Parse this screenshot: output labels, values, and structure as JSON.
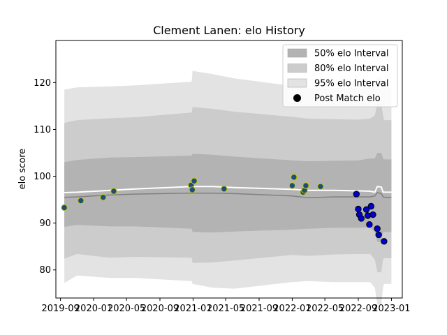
{
  "chart_data": {
    "type": "scatter",
    "title": "Clement Lanen: elo History",
    "xlabel": "",
    "ylabel": "elo score",
    "xlim": [
      "2019-08-15",
      "2023-02-10"
    ],
    "ylim": [
      74,
      129
    ],
    "grid": false,
    "legend_position": "top-right",
    "x_tick_labels": [
      "2019-09",
      "2020-01",
      "2020-05",
      "2020-09",
      "2021-01",
      "2021-05",
      "2021-09",
      "2022-01",
      "2022-05",
      "2022-09",
      "2023-01"
    ],
    "x_tick_values": [
      "2019-09-01",
      "2020-01-01",
      "2020-05-01",
      "2020-09-01",
      "2021-01-01",
      "2021-05-01",
      "2021-09-01",
      "2022-01-01",
      "2022-05-01",
      "2022-09-01",
      "2023-01-01"
    ],
    "y_ticks": [
      80,
      90,
      100,
      110,
      120
    ],
    "legend": [
      {
        "label": "50% elo Interval",
        "kind": "band",
        "color": "#b3b3b3"
      },
      {
        "label": "80% elo Interval",
        "kind": "band",
        "color": "#cccccc"
      },
      {
        "label": "95% elo Interval",
        "kind": "band",
        "color": "#e3e3e3"
      },
      {
        "label": "Post Match elo",
        "kind": "marker",
        "color": "#000000"
      }
    ],
    "band_dates": [
      "2019-09-15",
      "2019-11-01",
      "2020-03-01",
      "2020-06-01",
      "2020-12-27",
      "2020-12-30",
      "2021-03-15",
      "2021-06-01",
      "2022-01-01",
      "2022-03-01",
      "2022-06-01",
      "2022-09-01",
      "2022-10-15",
      "2022-11-01",
      "2022-11-10",
      "2022-11-25",
      "2022-12-01",
      "2022-12-05",
      "2023-01-01"
    ],
    "mean_line": [
      95.5,
      95.6,
      96.0,
      96.2,
      96.4,
      96.4,
      96.4,
      96.3,
      95.8,
      95.4,
      95.6,
      95.6,
      95.6,
      95.8,
      96.5,
      96.3,
      95.6,
      95.5,
      95.5
    ],
    "median_line": [
      96.5,
      96.6,
      97.0,
      97.3,
      97.8,
      97.8,
      97.8,
      97.6,
      97.2,
      97.0,
      97.0,
      96.9,
      96.8,
      96.6,
      97.8,
      97.7,
      96.6,
      96.6,
      96.6
    ],
    "bands": {
      "p50": {
        "upper": [
          103.0,
          103.5,
          104.0,
          104.1,
          104.4,
          104.8,
          104.6,
          104.2,
          103.4,
          103.2,
          103.3,
          103.4,
          103.8,
          103.8,
          105.0,
          105.0,
          103.8,
          103.6,
          103.6
        ],
        "lower": [
          89.2,
          89.6,
          89.3,
          89.3,
          88.8,
          88.1,
          88.0,
          88.2,
          88.6,
          88.8,
          89.0,
          89.0,
          89.1,
          88.0,
          86.0,
          86.0,
          88.0,
          88.1,
          88.1
        ]
      },
      "p80": {
        "upper": [
          111.4,
          112.0,
          112.4,
          112.6,
          113.6,
          114.8,
          114.4,
          113.8,
          112.7,
          112.3,
          112.2,
          112.1,
          112.3,
          113.0,
          115.5,
          115.5,
          113.0,
          112.0,
          112.0
        ]
      },
      "p95": {
        "upper": [
          118.5,
          119.0,
          119.2,
          119.4,
          120.2,
          122.5,
          121.8,
          120.9,
          119.3,
          118.8,
          118.8,
          118.8,
          119.2,
          119.2,
          121.0,
          121.0,
          119.2,
          119.0,
          119.0
        ]
      }
    },
    "bands_lower_extra": {
      "p80_lower": [
        82.4,
        83.4,
        82.6,
        82.8,
        82.6,
        81.5,
        81.6,
        82.0,
        83.2,
        83.0,
        83.3,
        83.4,
        83.4,
        82.2,
        79.5,
        79.5,
        82.2,
        82.5,
        82.5
      ],
      "p95_lower": [
        77.2,
        78.8,
        78.3,
        78.3,
        77.6,
        77.0,
        76.2,
        76.0,
        77.4,
        77.6,
        77.4,
        77.4,
        77.4,
        76.2,
        72.6,
        72.6,
        76.2,
        77.0,
        77.0
      ]
    },
    "points": [
      {
        "x": "2019-09-15",
        "y": 93.3
      },
      {
        "x": "2019-11-15",
        "y": 94.8
      },
      {
        "x": "2020-02-05",
        "y": 95.5
      },
      {
        "x": "2020-03-15",
        "y": 96.8
      },
      {
        "x": "2020-12-25",
        "y": 98.1
      },
      {
        "x": "2020-12-29",
        "y": 97.1
      },
      {
        "x": "2021-01-05",
        "y": 99.0
      },
      {
        "x": "2021-04-25",
        "y": 97.3
      },
      {
        "x": "2022-01-01",
        "y": 98.0
      },
      {
        "x": "2022-01-07",
        "y": 99.8
      },
      {
        "x": "2022-02-10",
        "y": 96.6
      },
      {
        "x": "2022-02-15",
        "y": 97.0
      },
      {
        "x": "2022-02-20",
        "y": 98.0
      },
      {
        "x": "2022-04-15",
        "y": 97.8
      },
      {
        "x": "2022-08-25",
        "y": 96.2
      },
      {
        "x": "2022-09-01",
        "y": 93.0
      },
      {
        "x": "2022-09-05",
        "y": 91.8
      },
      {
        "x": "2022-09-12",
        "y": 91.0
      },
      {
        "x": "2022-10-01",
        "y": 92.9
      },
      {
        "x": "2022-10-06",
        "y": 91.6
      },
      {
        "x": "2022-10-12",
        "y": 89.7
      },
      {
        "x": "2022-10-18",
        "y": 93.6
      },
      {
        "x": "2022-10-25",
        "y": 91.8
      },
      {
        "x": "2022-11-10",
        "y": 88.8
      },
      {
        "x": "2022-11-15",
        "y": 87.5
      },
      {
        "x": "2022-12-05",
        "y": 86.1
      }
    ],
    "colors": {
      "median_line": "#ffffff",
      "mean_line": "#808080",
      "point_fill_early": "#1f4e79",
      "point_edge_early": "#c8c800",
      "point_fill_late": "#0000cc",
      "point_edge_late": "#000000"
    }
  }
}
